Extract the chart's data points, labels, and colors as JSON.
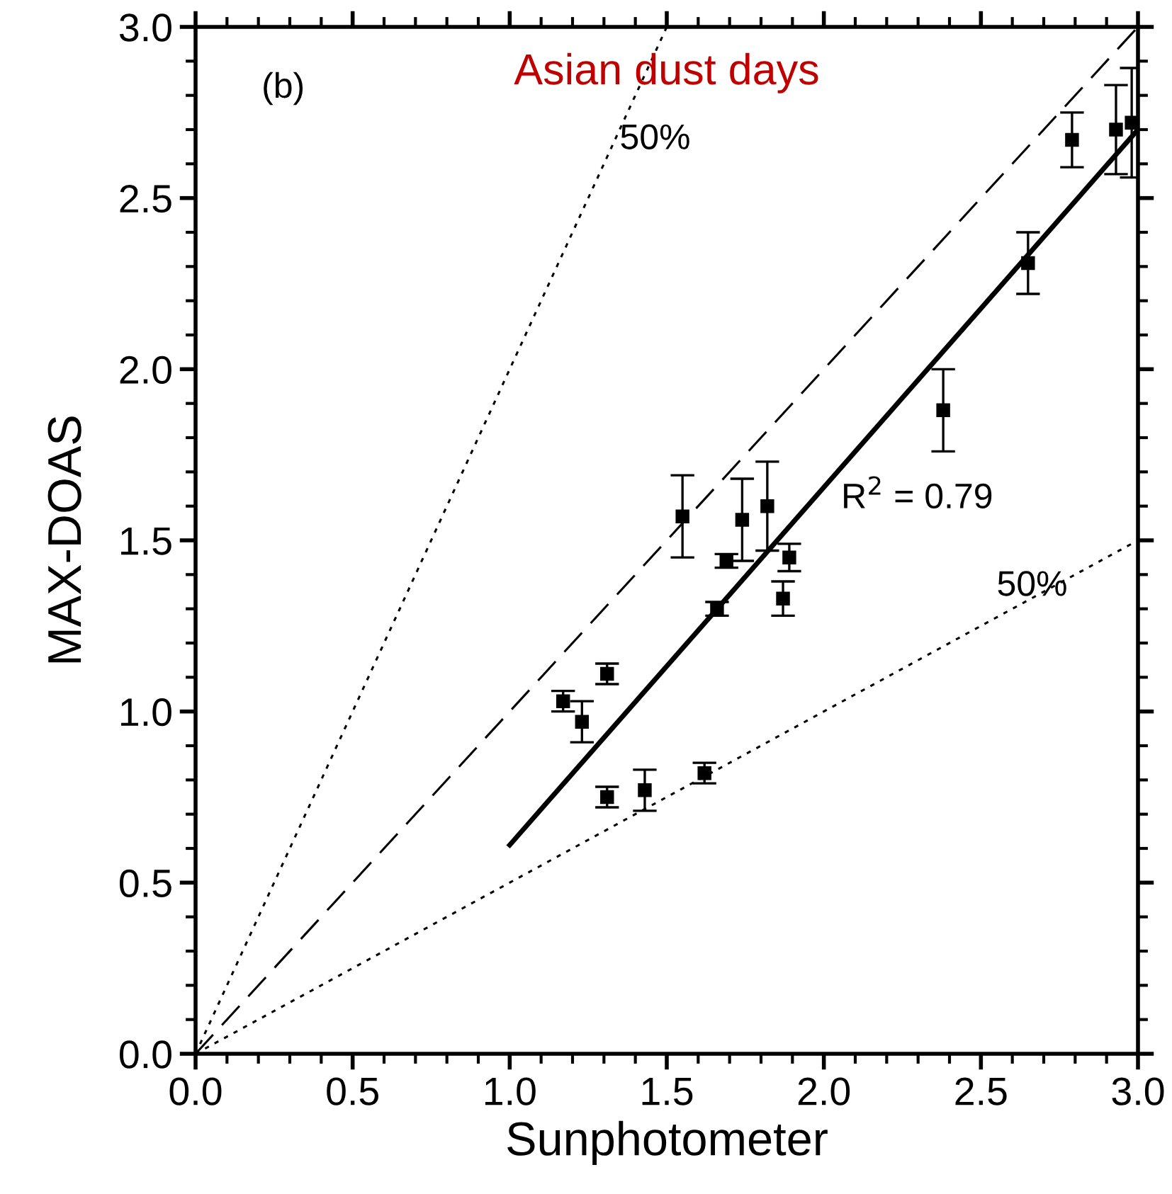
{
  "chart_data": {
    "type": "scatter",
    "title": "Asian dust days",
    "xlabel": "Sunphotometer",
    "ylabel": "MAX-DOAS",
    "xlim": [
      0,
      3
    ],
    "ylim": [
      0,
      3
    ],
    "xticks": [
      {
        "value": 0,
        "label": "0.0"
      },
      0.5,
      {
        "value": 1,
        "label": "1.0"
      },
      1.5,
      {
        "value": 2,
        "label": "2.0"
      },
      2.5,
      {
        "value": 3,
        "label": "3.0"
      }
    ],
    "yticks": [
      {
        "value": 0,
        "label": "0.0"
      },
      0.5,
      {
        "value": 1,
        "label": "1.0"
      },
      1.5,
      {
        "value": 2,
        "label": "2.0"
      },
      2.5,
      {
        "value": 3,
        "label": "3.0"
      }
    ],
    "grid": false,
    "legend": false,
    "marker": "square",
    "annotations": [
      "(b)",
      "50%",
      "50%",
      "R$^{2}$ = 0.79"
    ],
    "series": [
      {
        "color": "#000000",
        "x": [
          1.17,
          1.23,
          1.31,
          1.31,
          1.43,
          1.55,
          1.62,
          1.66,
          1.69,
          1.74,
          1.82,
          1.87,
          1.89,
          2.38,
          2.65,
          2.79,
          2.93,
          2.98
        ],
        "values": [
          1.03,
          0.97,
          1.11,
          0.75,
          0.77,
          1.57,
          0.82,
          1.3,
          1.44,
          1.56,
          1.6,
          1.33,
          1.45,
          1.88,
          2.31,
          2.67,
          2.7,
          2.72
        ],
        "errors": [
          0.03,
          0.06,
          0.03,
          0.03,
          0.06,
          0.12,
          0.03,
          0.02,
          0.02,
          0.12,
          0.13,
          0.05,
          0.04,
          0.12,
          0.09,
          0.08,
          0.13,
          0.16
        ]
      },
      {
        "type": "line",
        "color": "#000000",
        "line_style": "solid",
        "marker": "none",
        "x": [
          1.0,
          3.0
        ],
        "values": [
          0.61,
          2.7
        ]
      },
      {
        "type": "line",
        "color": "#000000",
        "line_style": "dashed",
        "marker": "none",
        "x": [
          0,
          3.0
        ],
        "values": [
          0,
          3.0
        ]
      },
      {
        "type": "line",
        "color": "#000000",
        "line_style": "dotted",
        "marker": "none",
        "x": [
          0,
          1.5
        ],
        "values": [
          0,
          3.0
        ]
      },
      {
        "type": "line",
        "color": "#000000",
        "line_style": "dotted",
        "marker": "none",
        "x": [
          0,
          3.0
        ],
        "values": [
          0,
          1.5
        ]
      }
    ]
  }
}
